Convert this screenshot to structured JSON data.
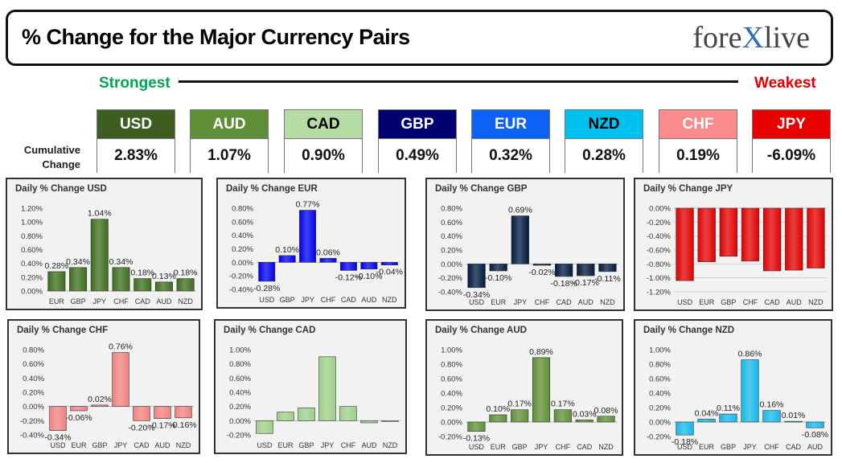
{
  "header": {
    "title": "% Change for the Major Currency Pairs",
    "logo_left": "fore",
    "logo_x": "X",
    "logo_right": "live"
  },
  "strength": {
    "strongest": "Strongest",
    "weakest": "Weakest"
  },
  "cumulative": {
    "label_line1": "Cumulative",
    "label_line2": "Change"
  },
  "currencies": [
    {
      "code": "USD",
      "value": "2.83%",
      "bg": "#3d5e1e",
      "fg": "#ffffff"
    },
    {
      "code": "AUD",
      "value": "1.07%",
      "bg": "#5e8f36",
      "fg": "#ffffff"
    },
    {
      "code": "CAD",
      "value": "0.90%",
      "bg": "#b5dca2",
      "fg": "#000000"
    },
    {
      "code": "GBP",
      "value": "0.49%",
      "bg": "#000070",
      "fg": "#ffffff"
    },
    {
      "code": "EUR",
      "value": "0.32%",
      "bg": "#0b62f5",
      "fg": "#ffffff"
    },
    {
      "code": "NZD",
      "value": "0.28%",
      "bg": "#00c0f0",
      "fg": "#000000"
    },
    {
      "code": "CHF",
      "value": "0.19%",
      "bg": "#f98b8b",
      "fg": "#ffffff"
    },
    {
      "code": "JPY",
      "value": "-6.09%",
      "bg": "#e80000",
      "fg": "#ffffff"
    }
  ],
  "chart_data": [
    {
      "type": "bar",
      "title": "Daily % Change USD",
      "color": "#3d6d1e",
      "categories": [
        "EUR",
        "GBP",
        "JPY",
        "CHF",
        "CAD",
        "AUD",
        "NZD"
      ],
      "values": [
        0.28,
        0.34,
        1.04,
        0.34,
        0.18,
        0.13,
        0.18
      ],
      "labels": [
        "0.28%",
        "0.34%",
        "1.04%",
        "0.34%",
        "0.18%",
        "0.13%",
        "0.18%"
      ],
      "ylim": [
        0,
        1.2
      ],
      "yticks": [
        "0.00%",
        "0.20%",
        "0.40%",
        "0.60%",
        "0.80%",
        "1.00%",
        "1.20%"
      ],
      "ytick_values": [
        0,
        0.2,
        0.4,
        0.6,
        0.8,
        1.0,
        1.2
      ],
      "show_labels": true,
      "grid": false
    },
    {
      "type": "bar",
      "title": "Daily % Change EUR",
      "color": "#0000ee",
      "categories": [
        "USD",
        "GBP",
        "JPY",
        "CHF",
        "CAD",
        "AUD",
        "NZD"
      ],
      "values": [
        -0.28,
        0.1,
        0.77,
        0.06,
        -0.12,
        -0.1,
        -0.04
      ],
      "labels": [
        "-0.28%",
        "0.10%",
        "0.77%",
        "0.06%",
        "-0.12%",
        "-0.10%",
        "-0.04%"
      ],
      "ylim": [
        -0.4,
        0.8
      ],
      "yticks": [
        "-0.40%",
        "-0.20%",
        "0.00%",
        "0.20%",
        "0.40%",
        "0.60%",
        "0.80%"
      ],
      "ytick_values": [
        -0.4,
        -0.2,
        0,
        0.2,
        0.4,
        0.6,
        0.8
      ],
      "show_labels": true,
      "grid": false
    },
    {
      "type": "bar",
      "title": "Daily % Change GBP",
      "color": "#001a40",
      "categories": [
        "USD",
        "EUR",
        "JPY",
        "CHF",
        "CAD",
        "AUD",
        "NZD"
      ],
      "values": [
        -0.34,
        -0.1,
        0.69,
        -0.02,
        -0.18,
        -0.17,
        -0.11
      ],
      "labels": [
        "-0.34%",
        "-0.10%",
        "0.69%",
        "-0.02%",
        "-0.18%",
        "-0.17%",
        "-0.11%"
      ],
      "ylim": [
        -0.4,
        0.8
      ],
      "yticks": [
        "-0.40%",
        "-0.20%",
        "0.00%",
        "0.20%",
        "0.40%",
        "0.60%",
        "0.80%"
      ],
      "ytick_values": [
        -0.4,
        -0.2,
        0,
        0.2,
        0.4,
        0.6,
        0.8
      ],
      "show_labels": true,
      "grid": false
    },
    {
      "type": "bar",
      "title": "Daily % Change JPY",
      "color": "#e00000",
      "categories": [
        "USD",
        "EUR",
        "GBP",
        "CHF",
        "CAD",
        "AUD",
        "NZD"
      ],
      "values": [
        -1.04,
        -0.77,
        -0.69,
        -0.76,
        -0.9,
        -0.89,
        -0.86
      ],
      "labels": [],
      "ylim": [
        -1.2,
        0
      ],
      "yticks": [
        "-1.20%",
        "-1.00%",
        "-0.80%",
        "-0.60%",
        "-0.40%",
        "-0.20%",
        "0.00%"
      ],
      "ytick_values": [
        -1.2,
        -1.0,
        -0.8,
        -0.6,
        -0.4,
        -0.2,
        0
      ],
      "show_labels": false,
      "grid": true
    },
    {
      "type": "bar",
      "title": "Daily % Change CHF",
      "color": "#f08080",
      "categories": [
        "USD",
        "EUR",
        "GBP",
        "JPY",
        "CAD",
        "AUD",
        "NZD"
      ],
      "values": [
        -0.34,
        -0.06,
        0.02,
        0.76,
        -0.2,
        -0.17,
        -0.16
      ],
      "labels": [
        "-0.34%",
        "-0.06%",
        "0.02%",
        "0.76%",
        "-0.20%",
        "-0.17%",
        "-0.16%"
      ],
      "ylim": [
        -0.4,
        0.8
      ],
      "yticks": [
        "-0.40%",
        "-0.20%",
        "0.00%",
        "0.20%",
        "0.40%",
        "0.60%",
        "0.80%"
      ],
      "ytick_values": [
        -0.4,
        -0.2,
        0,
        0.2,
        0.4,
        0.6,
        0.8
      ],
      "show_labels": true,
      "grid": false
    },
    {
      "type": "bar",
      "title": "Daily % Change CAD",
      "color": "#9ccf88",
      "categories": [
        "USD",
        "EUR",
        "GBP",
        "JPY",
        "CHF",
        "AUD",
        "NZD"
      ],
      "values": [
        -0.18,
        0.12,
        0.18,
        0.9,
        0.2,
        -0.03,
        -0.01
      ],
      "labels": [],
      "ylim": [
        -0.2,
        1.0
      ],
      "yticks": [
        "-0.20%",
        "0.00%",
        "0.20%",
        "0.40%",
        "0.60%",
        "0.80%",
        "1.00%"
      ],
      "ytick_values": [
        -0.2,
        0,
        0.2,
        0.4,
        0.6,
        0.8,
        1.0
      ],
      "show_labels": false,
      "grid": false
    },
    {
      "type": "bar",
      "title": "Daily % Change AUD",
      "color": "#5e8f36",
      "categories": [
        "USD",
        "EUR",
        "GBP",
        "JPY",
        "CHF",
        "CAD",
        "NZD"
      ],
      "values": [
        -0.13,
        0.1,
        0.17,
        0.89,
        0.17,
        0.03,
        0.08
      ],
      "labels": [
        "-0.13%",
        "0.10%",
        "0.17%",
        "0.89%",
        "0.17%",
        "0.03%",
        "0.08%"
      ],
      "ylim": [
        -0.2,
        1.0
      ],
      "yticks": [
        "-0.20%",
        "0.00%",
        "0.20%",
        "0.40%",
        "0.60%",
        "0.80%",
        "1.00%"
      ],
      "ytick_values": [
        -0.2,
        0,
        0.2,
        0.4,
        0.6,
        0.8,
        1.0
      ],
      "show_labels": true,
      "grid": false
    },
    {
      "type": "bar",
      "title": "Daily % Change NZD",
      "color": "#15b8e8",
      "categories": [
        "USD",
        "EUR",
        "GBP",
        "JPY",
        "CHF",
        "CAD",
        "AUD"
      ],
      "values": [
        -0.18,
        0.04,
        0.11,
        0.86,
        0.16,
        0.01,
        -0.08
      ],
      "labels": [
        "-0.18%",
        "0.04%",
        "0.11%",
        "0.86%",
        "0.16%",
        "0.01%",
        "-0.08%"
      ],
      "ylim": [
        -0.2,
        1.0
      ],
      "yticks": [
        "-0.20%",
        "0.00%",
        "0.20%",
        "0.40%",
        "0.60%",
        "0.80%",
        "1.00%"
      ],
      "ytick_values": [
        -0.2,
        0,
        0.2,
        0.4,
        0.6,
        0.8,
        1.0
      ],
      "show_labels": true,
      "grid": false
    }
  ]
}
